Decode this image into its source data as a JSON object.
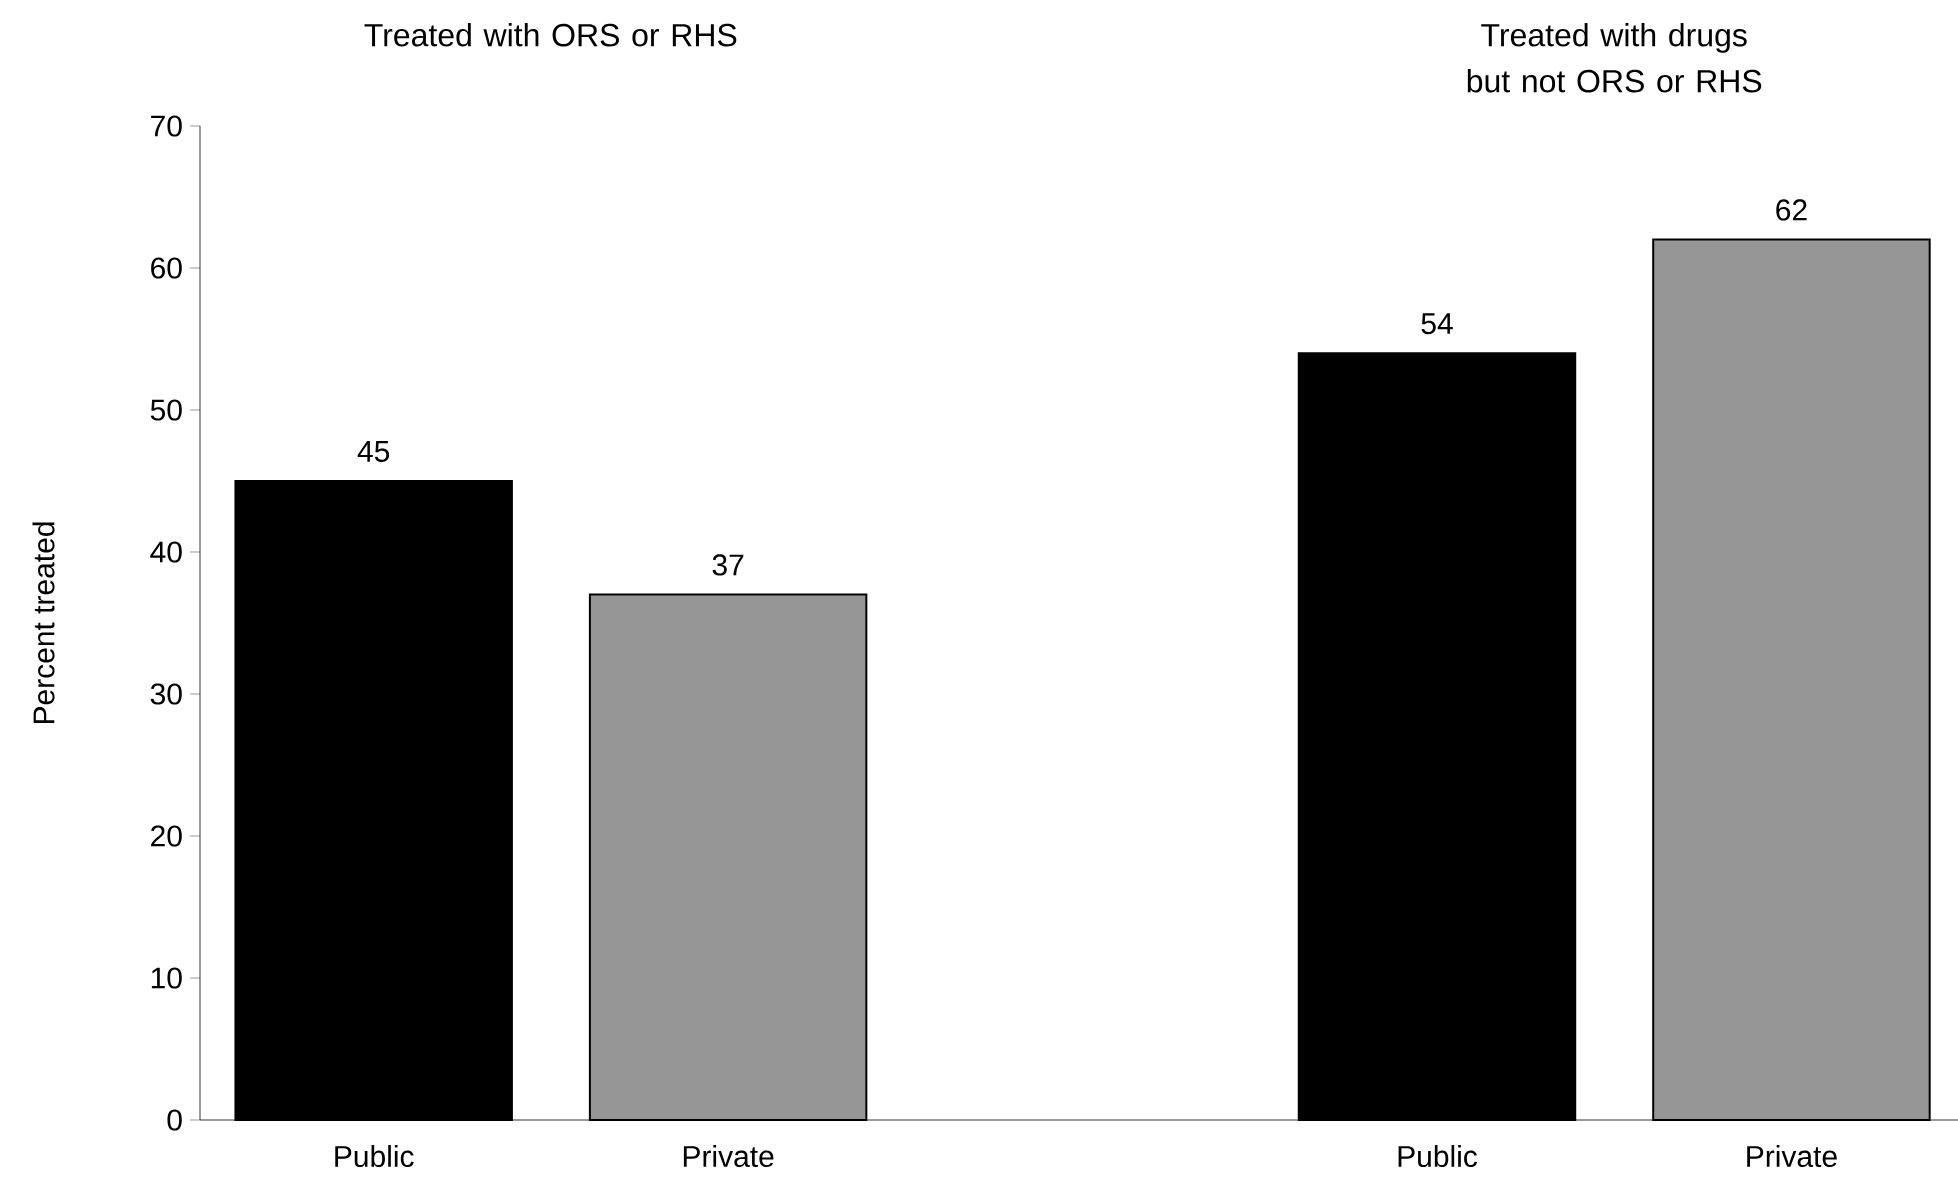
{
  "chart_data": {
    "type": "bar",
    "categories": [
      "Public",
      "Private",
      null,
      "Public",
      "Private"
    ],
    "values": [
      45,
      37,
      null,
      54,
      62
    ],
    "colors": [
      "#000000",
      "#969696",
      "#ffffff",
      "#000000",
      "#969696"
    ],
    "ylabel": "Percent treated",
    "ylim": [
      0,
      70
    ],
    "yticks": [
      0,
      10,
      20,
      30,
      40,
      50,
      60,
      70
    ],
    "data_labels": true,
    "annotations": [
      "Treated with ORS or RHS",
      "Treated with drugs but not ORS or RHS"
    ]
  }
}
